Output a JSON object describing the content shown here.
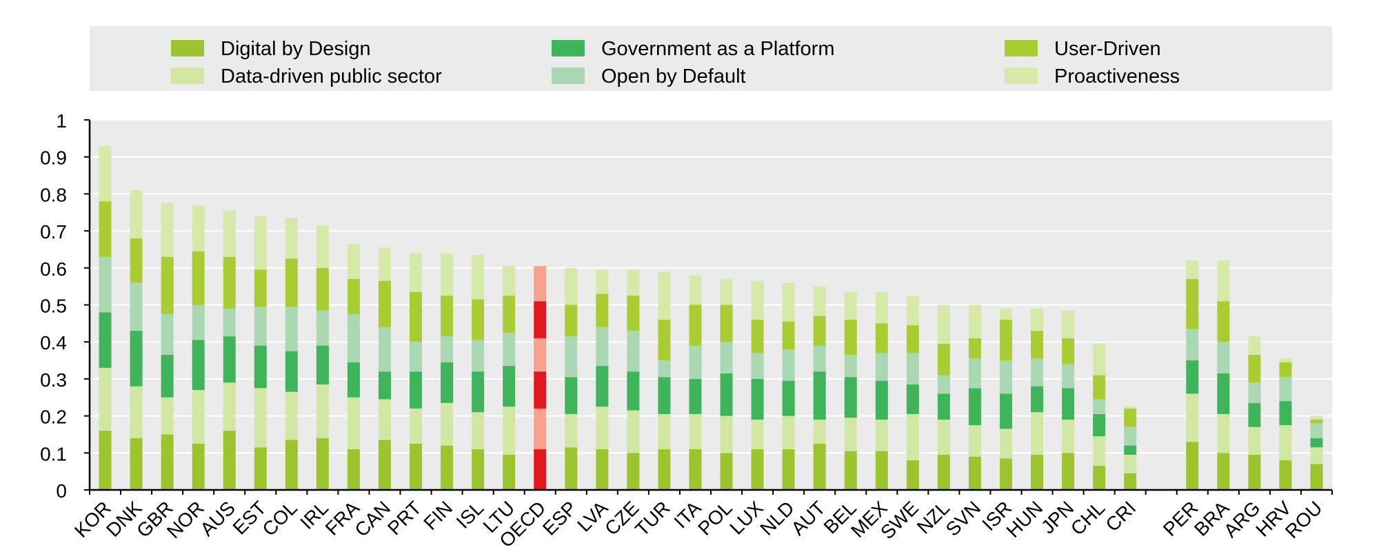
{
  "chart_data": {
    "type": "bar",
    "stacked": true,
    "title": "",
    "xlabel": "",
    "ylabel": "",
    "ylim": [
      0,
      1
    ],
    "yticks": [
      "0",
      "0.1",
      "0.2",
      "0.3",
      "0.4",
      "0.5",
      "0.6",
      "0.7",
      "0.8",
      "0.9",
      "1"
    ],
    "grid": true,
    "legend_position": "top",
    "highlight_category": "OECD",
    "categories": [
      "KOR",
      "DNK",
      "GBR",
      "NOR",
      "AUS",
      "EST",
      "COL",
      "IRL",
      "FRA",
      "CAN",
      "PRT",
      "FIN",
      "ISL",
      "LTU",
      "OECD",
      "ESP",
      "LVA",
      "CZE",
      "TUR",
      "ITA",
      "POL",
      "LUX",
      "NLD",
      "AUT",
      "BEL",
      "MEX",
      "SWE",
      "NZL",
      "SVN",
      "ISR",
      "HUN",
      "JPN",
      "CHL",
      "CRI",
      "PER",
      "BRA",
      "ARG",
      "HRV",
      "ROU"
    ],
    "group_break_after": "CRI",
    "series": [
      {
        "name": "Digital by Design",
        "color": "#9CC42E",
        "highlight_color": "#E2181F",
        "values": [
          0.16,
          0.14,
          0.15,
          0.125,
          0.16,
          0.115,
          0.135,
          0.14,
          0.11,
          0.135,
          0.125,
          0.12,
          0.11,
          0.095,
          0.11,
          0.115,
          0.11,
          0.1,
          0.11,
          0.11,
          0.1,
          0.11,
          0.11,
          0.125,
          0.105,
          0.105,
          0.08,
          0.095,
          0.09,
          0.085,
          0.095,
          0.1,
          0.065,
          0.045,
          0.13,
          0.1,
          0.095,
          0.08,
          0.07
        ]
      },
      {
        "name": "Data-driven public sector",
        "color": "#D3E7A4",
        "highlight_color": "#F7A28F",
        "values": [
          0.17,
          0.14,
          0.1,
          0.145,
          0.13,
          0.16,
          0.13,
          0.145,
          0.14,
          0.11,
          0.095,
          0.115,
          0.1,
          0.13,
          0.11,
          0.09,
          0.115,
          0.115,
          0.095,
          0.095,
          0.1,
          0.08,
          0.09,
          0.065,
          0.09,
          0.085,
          0.125,
          0.095,
          0.085,
          0.08,
          0.115,
          0.09,
          0.08,
          0.05,
          0.13,
          0.105,
          0.075,
          0.095,
          0.045
        ]
      },
      {
        "name": "Government as a Platform",
        "color": "#3FB45A",
        "highlight_color": "#E2181F",
        "values": [
          0.15,
          0.15,
          0.115,
          0.135,
          0.125,
          0.115,
          0.11,
          0.105,
          0.095,
          0.075,
          0.1,
          0.11,
          0.11,
          0.11,
          0.1,
          0.1,
          0.11,
          0.105,
          0.1,
          0.095,
          0.115,
          0.11,
          0.095,
          0.13,
          0.11,
          0.105,
          0.08,
          0.07,
          0.1,
          0.095,
          0.07,
          0.085,
          0.06,
          0.025,
          0.09,
          0.11,
          0.065,
          0.065,
          0.025
        ]
      },
      {
        "name": "Open by Default",
        "color": "#A9D8B2",
        "highlight_color": "#F7A28F",
        "values": [
          0.15,
          0.13,
          0.11,
          0.095,
          0.075,
          0.105,
          0.12,
          0.095,
          0.13,
          0.12,
          0.08,
          0.07,
          0.085,
          0.09,
          0.09,
          0.11,
          0.105,
          0.11,
          0.045,
          0.09,
          0.085,
          0.07,
          0.085,
          0.07,
          0.06,
          0.075,
          0.085,
          0.05,
          0.08,
          0.09,
          0.075,
          0.065,
          0.04,
          0.05,
          0.085,
          0.085,
          0.055,
          0.065,
          0.04
        ]
      },
      {
        "name": "User-Driven",
        "color": "#AACC33",
        "highlight_color": "#E2181F",
        "values": [
          0.15,
          0.12,
          0.155,
          0.145,
          0.14,
          0.1,
          0.13,
          0.115,
          0.095,
          0.125,
          0.135,
          0.11,
          0.11,
          0.1,
          0.1,
          0.085,
          0.09,
          0.095,
          0.11,
          0.11,
          0.1,
          0.09,
          0.075,
          0.08,
          0.095,
          0.08,
          0.075,
          0.085,
          0.055,
          0.11,
          0.075,
          0.07,
          0.065,
          0.05,
          0.135,
          0.11,
          0.075,
          0.04,
          0.01
        ]
      },
      {
        "name": "Proactiveness",
        "color": "#D6E9A8",
        "highlight_color": "#F7A28F",
        "values": [
          0.15,
          0.13,
          0.145,
          0.125,
          0.125,
          0.145,
          0.11,
          0.115,
          0.095,
          0.09,
          0.105,
          0.115,
          0.12,
          0.08,
          0.095,
          0.1,
          0.065,
          0.07,
          0.13,
          0.08,
          0.07,
          0.105,
          0.105,
          0.08,
          0.075,
          0.085,
          0.08,
          0.105,
          0.09,
          0.03,
          0.06,
          0.075,
          0.085,
          0.005,
          0.05,
          0.11,
          0.05,
          0.01,
          0.01
        ]
      }
    ]
  }
}
